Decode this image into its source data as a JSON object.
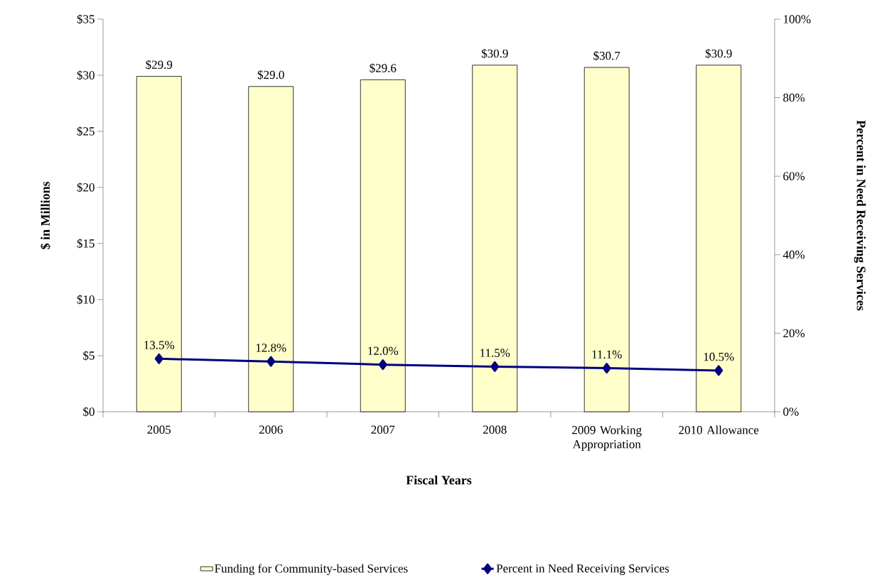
{
  "chart_data": {
    "type": "bar",
    "xlabel": "Fiscal Years",
    "ylabel": "$ in Millions",
    "y2label": "Percent in Need Receiving Services",
    "categories": [
      "2005",
      "2006",
      "2007",
      "2008",
      "2009 Working Appropriation",
      "2010 Allowance"
    ],
    "series": [
      {
        "name": "Funding for Community-based Services",
        "color": "#ffffcc",
        "values": [
          29.9,
          29.0,
          29.6,
          30.9,
          30.7,
          30.9
        ],
        "value_labels": [
          "$29.9",
          "$29.0",
          "$29.6",
          "$30.9",
          "$30.7",
          "$30.9"
        ]
      },
      {
        "name": "Percent in Need Receiving Services",
        "type": "line",
        "axis": "y2",
        "color": "#000080",
        "marker": "diamond",
        "line_style": "solid",
        "values": [
          13.5,
          12.8,
          12.0,
          11.5,
          11.1,
          10.5
        ],
        "value_labels": [
          "13.5%",
          "12.8%",
          "12.0%",
          "11.5%",
          "11.1%",
          "10.5%"
        ]
      }
    ],
    "ylim": [
      0,
      35
    ],
    "yticks": [
      {
        "value": 0,
        "label": "$0"
      },
      {
        "value": 5,
        "label": "$5"
      },
      {
        "value": 10,
        "label": "$10"
      },
      {
        "value": 15,
        "label": "$15"
      },
      {
        "value": 20,
        "label": "$20"
      },
      {
        "value": 25,
        "label": "$25"
      },
      {
        "value": 30,
        "label": "$30"
      },
      {
        "value": 35,
        "label": "$35"
      }
    ],
    "y2lim": [
      0,
      100
    ],
    "y2ticks": [
      {
        "value": 0,
        "label": "0%"
      },
      {
        "value": 20,
        "label": "20%"
      },
      {
        "value": 40,
        "label": "40%"
      },
      {
        "value": 60,
        "label": "60%"
      },
      {
        "value": 80,
        "label": "80%"
      },
      {
        "value": 100,
        "label": "100%"
      }
    ],
    "legend": "bottom",
    "grid": false
  }
}
